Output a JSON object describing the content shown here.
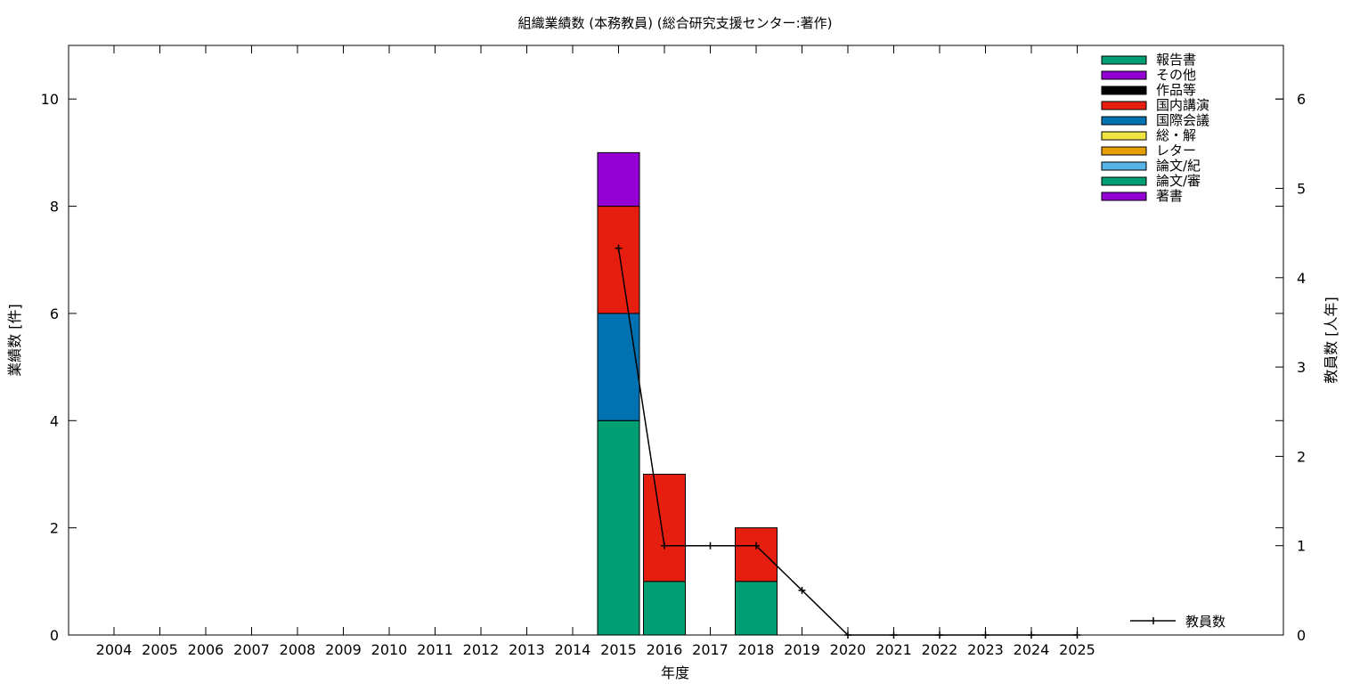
{
  "chart_data": {
    "type": "bar",
    "title": "組織業績数 (本務教員) (総合研究支援センター:著作)",
    "xlabel": "年度",
    "ylabel": "業績数 [件]",
    "y2label": "教員数 [人年]",
    "categories": [
      "2004",
      "2005",
      "2006",
      "2007",
      "2008",
      "2009",
      "2010",
      "2011",
      "2012",
      "2013",
      "2014",
      "2015",
      "2016",
      "2017",
      "2018",
      "2019",
      "2020",
      "2021",
      "2022",
      "2023",
      "2024",
      "2025"
    ],
    "ylim": [
      0,
      11
    ],
    "y2lim": [
      0,
      6.6
    ],
    "yticks": [
      "0",
      "2",
      "4",
      "6",
      "8",
      "10"
    ],
    "y2ticks": [
      "0",
      "1",
      "2",
      "3",
      "4",
      "5",
      "6"
    ],
    "stacked": true,
    "legend_placement": "top-right",
    "series": [
      {
        "name": "著書",
        "color": "#9400d3",
        "values": [
          0,
          0,
          0,
          0,
          0,
          0,
          0,
          0,
          0,
          0,
          0,
          0,
          0,
          0,
          0,
          0,
          0,
          0,
          0,
          0,
          0,
          0
        ]
      },
      {
        "name": "論文/審",
        "color": "#009e73",
        "values": [
          0,
          0,
          0,
          0,
          0,
          0,
          0,
          0,
          0,
          0,
          0,
          4,
          1,
          0,
          1,
          0,
          0,
          0,
          0,
          0,
          0,
          0
        ]
      },
      {
        "name": "論文/紀",
        "color": "#56b4e9",
        "values": [
          0,
          0,
          0,
          0,
          0,
          0,
          0,
          0,
          0,
          0,
          0,
          0,
          0,
          0,
          0,
          0,
          0,
          0,
          0,
          0,
          0,
          0
        ]
      },
      {
        "name": "レター",
        "color": "#e69f00",
        "values": [
          0,
          0,
          0,
          0,
          0,
          0,
          0,
          0,
          0,
          0,
          0,
          0,
          0,
          0,
          0,
          0,
          0,
          0,
          0,
          0,
          0,
          0
        ]
      },
      {
        "name": "総・解",
        "color": "#f0e442",
        "values": [
          0,
          0,
          0,
          0,
          0,
          0,
          0,
          0,
          0,
          0,
          0,
          0,
          0,
          0,
          0,
          0,
          0,
          0,
          0,
          0,
          0,
          0
        ]
      },
      {
        "name": "国際会議",
        "color": "#0072b2",
        "values": [
          0,
          0,
          0,
          0,
          0,
          0,
          0,
          0,
          0,
          0,
          0,
          2,
          0,
          0,
          0,
          0,
          0,
          0,
          0,
          0,
          0,
          0
        ]
      },
      {
        "name": "国内講演",
        "color": "#e51e10",
        "values": [
          0,
          0,
          0,
          0,
          0,
          0,
          0,
          0,
          0,
          0,
          0,
          2,
          2,
          0,
          1,
          0,
          0,
          0,
          0,
          0,
          0,
          0
        ]
      },
      {
        "name": "作品等",
        "color": "#000000",
        "values": [
          0,
          0,
          0,
          0,
          0,
          0,
          0,
          0,
          0,
          0,
          0,
          0,
          0,
          0,
          0,
          0,
          0,
          0,
          0,
          0,
          0,
          0
        ]
      },
      {
        "name": "その他",
        "color": "#9400d3",
        "values": [
          0,
          0,
          0,
          0,
          0,
          0,
          0,
          0,
          0,
          0,
          0,
          1,
          0,
          0,
          0,
          0,
          0,
          0,
          0,
          0,
          0,
          0
        ]
      },
      {
        "name": "報告書",
        "color": "#009e73",
        "values": [
          0,
          0,
          0,
          0,
          0,
          0,
          0,
          0,
          0,
          0,
          0,
          0,
          0,
          0,
          0,
          0,
          0,
          0,
          0,
          0,
          0,
          0
        ]
      }
    ],
    "legend_order": [
      "報告書",
      "その他",
      "作品等",
      "国内講演",
      "国際会議",
      "総・解",
      "レター",
      "論文/紀",
      "論文/審",
      "著書"
    ],
    "line_series": {
      "name": "教員数",
      "axis": "y2",
      "color": "#000000",
      "x": [
        "2015",
        "2016",
        "2017",
        "2018",
        "2019",
        "2020",
        "2021",
        "2022",
        "2023",
        "2024",
        "2025"
      ],
      "values": [
        4.33,
        1,
        1,
        1,
        0.5,
        0,
        0,
        0,
        0,
        0,
        0
      ]
    }
  }
}
